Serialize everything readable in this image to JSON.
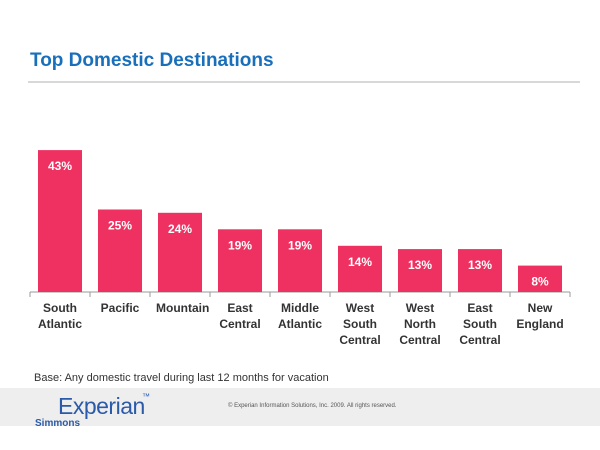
{
  "chart_data": {
    "type": "bar",
    "title": "Top Domestic Destinations",
    "categories": [
      "South Atlantic",
      "Pacific",
      "Mountain",
      "East Central",
      "Middle Atlantic",
      "West South Central",
      "West North Central",
      "East South Central",
      "New England"
    ],
    "values": [
      43,
      25,
      24,
      19,
      19,
      14,
      13,
      13,
      8
    ],
    "value_labels": [
      "43%",
      "25%",
      "24%",
      "19%",
      "19%",
      "14%",
      "13%",
      "13%",
      "8%"
    ],
    "color": "#ee3160"
  },
  "footnote": "Base: Any domestic travel during last 12 months for vacation",
  "footer": {
    "logo": "Experian",
    "trademark": "™",
    "sublogo": "Simmons",
    "copyright": "© Experian Information Solutions, Inc. 2009.  All rights reserved."
  }
}
